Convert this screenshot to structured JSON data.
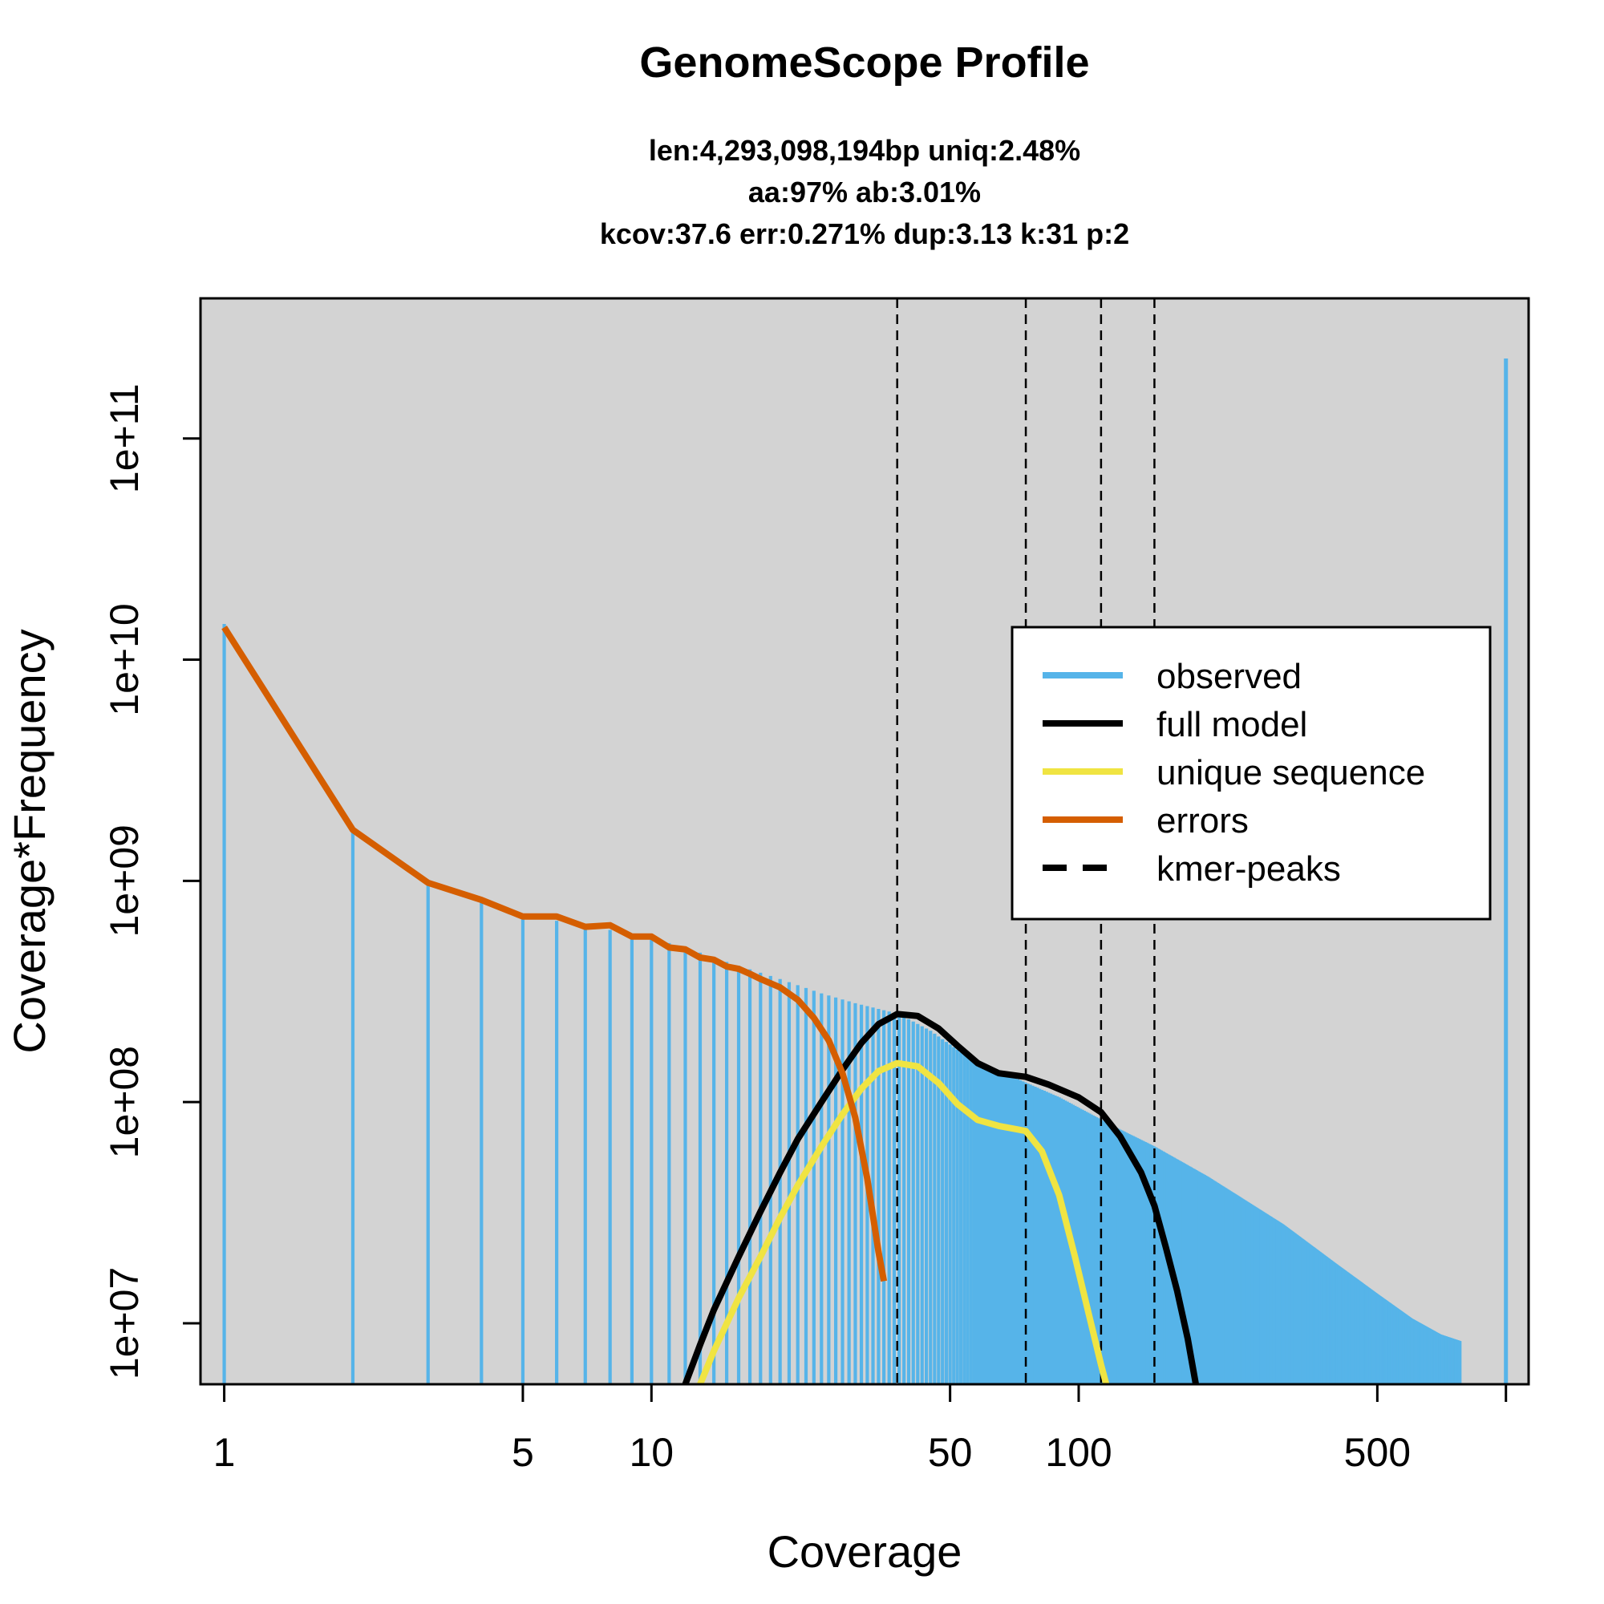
{
  "chart_data": {
    "type": "line",
    "title": "GenomeScope Profile",
    "subtitle_lines": [
      "len:4,293,098,194bp uniq:2.48%",
      "aa:97% ab:3.01%",
      "kcov:37.6 err:0.271%  dup:3.13  k:31 p:2"
    ],
    "xlabel": "Coverage",
    "ylabel": "Coverage*Frequency",
    "x_scale": "log",
    "y_scale": "log",
    "xlim": [
      0.88,
      1130
    ],
    "ylim": [
      5300000.0,
      430000000000.0
    ],
    "x_ticks": [
      {
        "value": 1,
        "label": "1"
      },
      {
        "value": 5,
        "label": "5"
      },
      {
        "value": 10,
        "label": "10"
      },
      {
        "value": 50,
        "label": "50"
      },
      {
        "value": 100,
        "label": "100"
      },
      {
        "value": 500,
        "label": "500"
      },
      {
        "value": 1000,
        "label": ""
      }
    ],
    "y_ticks": [
      {
        "value": 10000000.0,
        "label": "1e+07"
      },
      {
        "value": 100000000.0,
        "label": "1e+08"
      },
      {
        "value": 1000000000.0,
        "label": "1e+09"
      },
      {
        "value": 10000000000.0,
        "label": "1e+10"
      },
      {
        "value": 100000000000.0,
        "label": "1e+11"
      }
    ],
    "colors": {
      "observed": "#56B4E9",
      "full_model": "#000000",
      "unique_sequence": "#F0E442",
      "errors": "#D55E00",
      "kmer_peaks": "#000000",
      "plot_background": "#D3D3D3"
    },
    "observed": {
      "name": "observed",
      "histogram_points": [
        [
          1,
          14500000000.0
        ],
        [
          2,
          1700000000.0
        ],
        [
          3,
          980000000.0
        ],
        [
          4,
          800000000.0
        ],
        [
          5,
          690000000.0
        ],
        [
          6,
          660000000.0
        ],
        [
          7,
          630000000.0
        ],
        [
          8,
          600000000.0
        ],
        [
          9,
          570000000.0
        ],
        [
          10,
          550000000.0
        ],
        [
          12,
          500000000.0
        ],
        [
          15,
          430000000.0
        ],
        [
          20,
          360000000.0
        ],
        [
          25,
          310000000.0
        ],
        [
          30,
          280000000.0
        ],
        [
          38,
          250000000.0
        ],
        [
          45,
          210000000.0
        ],
        [
          55,
          160000000.0
        ],
        [
          70,
          130000000.0
        ],
        [
          90,
          105000000.0
        ],
        [
          120,
          78000000.0
        ],
        [
          150,
          63000000.0
        ],
        [
          200,
          46000000.0
        ],
        [
          300,
          28000000.0
        ],
        [
          400,
          18500000.0
        ],
        [
          500,
          13500000.0
        ],
        [
          600,
          10500000.0
        ],
        [
          700,
          8900000.0
        ],
        [
          780,
          8300000.0
        ]
      ],
      "overflow_bin": [
        1000,
        230000000000.0
      ]
    },
    "errors": {
      "name": "errors",
      "points": [
        [
          1,
          14000000000.0
        ],
        [
          2,
          1700000000.0
        ],
        [
          3,
          980000000.0
        ],
        [
          4,
          820000000.0
        ],
        [
          5,
          690000000.0
        ],
        [
          6,
          690000000.0
        ],
        [
          7,
          620000000.0
        ],
        [
          8,
          630000000.0
        ],
        [
          9,
          560000000.0
        ],
        [
          10,
          560000000.0
        ],
        [
          11,
          500000000.0
        ],
        [
          12,
          490000000.0
        ],
        [
          13,
          450000000.0
        ],
        [
          14,
          440000000.0
        ],
        [
          15,
          410000000.0
        ],
        [
          16,
          400000000.0
        ],
        [
          17,
          380000000.0
        ],
        [
          18,
          360000000.0
        ],
        [
          20,
          330000000.0
        ],
        [
          22,
          290000000.0
        ],
        [
          24,
          240000000.0
        ],
        [
          26,
          190000000.0
        ],
        [
          28,
          135000000.0
        ],
        [
          30,
          85000000.0
        ],
        [
          32,
          45000000.0
        ],
        [
          34,
          21000000.0
        ],
        [
          35,
          15500000.0
        ]
      ]
    },
    "full_model": {
      "name": "full model",
      "points": [
        [
          12,
          5300000.0
        ],
        [
          13,
          8000000.0
        ],
        [
          14,
          11500000.0
        ],
        [
          16,
          20000000.0
        ],
        [
          18,
          32000000.0
        ],
        [
          20,
          48000000.0
        ],
        [
          22,
          68000000.0
        ],
        [
          25,
          100000000.0
        ],
        [
          28,
          140000000.0
        ],
        [
          31,
          185000000.0
        ],
        [
          34,
          225000000.0
        ],
        [
          37.6,
          250000000.0
        ],
        [
          42,
          245000000.0
        ],
        [
          47,
          215000000.0
        ],
        [
          52,
          180000000.0
        ],
        [
          58,
          150000000.0
        ],
        [
          65,
          135000000.0
        ],
        [
          75.2,
          130000000.0
        ],
        [
          85,
          120000000.0
        ],
        [
          100,
          105000000.0
        ],
        [
          112.8,
          90000000.0
        ],
        [
          125,
          70000000.0
        ],
        [
          140,
          48000000.0
        ],
        [
          150.4,
          34000000.0
        ],
        [
          160,
          22000000.0
        ],
        [
          170,
          14000000.0
        ],
        [
          180,
          8500000.0
        ],
        [
          188,
          5300000.0
        ]
      ]
    },
    "unique_sequence": {
      "name": "unique sequence",
      "points": [
        [
          13,
          5300000.0
        ],
        [
          14,
          7500000.0
        ],
        [
          16,
          13000000.0
        ],
        [
          18,
          20000000.0
        ],
        [
          20,
          30000000.0
        ],
        [
          22,
          42000000.0
        ],
        [
          25,
          63000000.0
        ],
        [
          28,
          88000000.0
        ],
        [
          31,
          115000000.0
        ],
        [
          34,
          138000000.0
        ],
        [
          37.6,
          150000000.0
        ],
        [
          42,
          145000000.0
        ],
        [
          47,
          122000000.0
        ],
        [
          52,
          98000000.0
        ],
        [
          58,
          83000000.0
        ],
        [
          65,
          78000000.0
        ],
        [
          75.2,
          74000000.0
        ],
        [
          82,
          60000000.0
        ],
        [
          90,
          38000000.0
        ],
        [
          98,
          20000000.0
        ],
        [
          105,
          11500000.0
        ],
        [
          112.8,
          6500000.0
        ],
        [
          116,
          5300000.0
        ]
      ]
    },
    "kmer_peaks": [
      37.6,
      75.2,
      112.8,
      150.4
    ],
    "legend": {
      "position": "right",
      "entries": [
        {
          "label": "observed",
          "color": "#56B4E9",
          "style": "solid"
        },
        {
          "label": "full model",
          "color": "#000000",
          "style": "solid"
        },
        {
          "label": "unique sequence",
          "color": "#F0E442",
          "style": "solid"
        },
        {
          "label": "errors",
          "color": "#D55E00",
          "style": "solid"
        },
        {
          "label": "kmer-peaks",
          "color": "#000000",
          "style": "dashed"
        }
      ]
    }
  }
}
